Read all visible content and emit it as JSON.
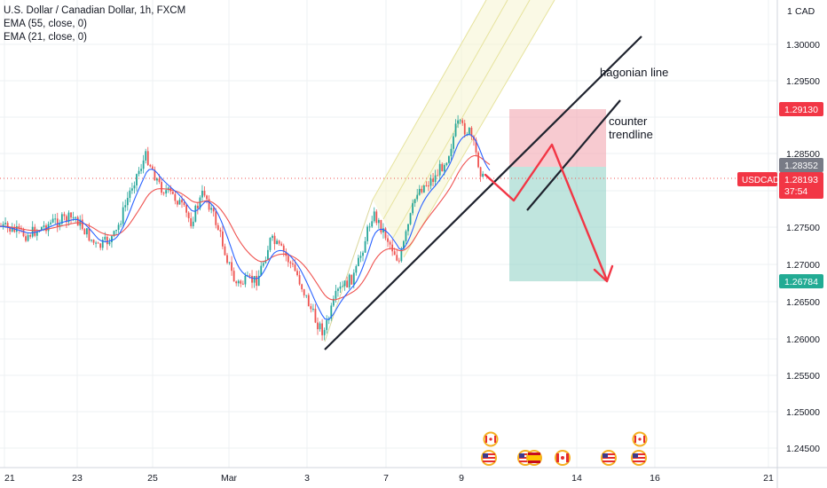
{
  "header": {
    "title": "U.S. Dollar / Canadian Dollar, 1h, FXCM",
    "indicator_1": "EMA (55, close, 0)",
    "indicator_2": "EMA (21, close, 0)"
  },
  "axis": {
    "currency": "CAD",
    "price_ticks": [
      "1.30000",
      "1.29500",
      "1.28500",
      "1.27500",
      "1.27000",
      "1.26500",
      "1.26000",
      "1.25500",
      "1.25000",
      "1.24500"
    ],
    "time_ticks": [
      "21",
      "23",
      "25",
      "Mar",
      "3",
      "7",
      "9",
      "14",
      "16",
      "21"
    ]
  },
  "price_labels": {
    "target_top": "1.29130",
    "entry": "1.28352",
    "symbol": "USDCAD",
    "current": "1.28193",
    "countdown": "37:54",
    "target_bottom": "1.26784"
  },
  "annotations": {
    "line_1": "hagonian line",
    "line_2_a": "counter",
    "line_2_b": "trendline"
  },
  "colors": {
    "up": "#26a69a",
    "down": "#ef5350",
    "ema55": "#ef5350",
    "ema21": "#2962ff",
    "drawn_line": "#1e222d",
    "arrow": "#f23645",
    "target_zone": "#f7a9b0",
    "stop_zone": "#8fcfc4",
    "pitchfork": "#f5f3c8"
  },
  "event_icons": [
    "canada-flag-icon",
    "usa-flag-icon",
    "usa-flag-icon",
    "spain-flag-icon",
    "canada-flag-icon",
    "usa-flag-icon",
    "usa-flag-icon",
    "canada-flag-icon"
  ]
}
